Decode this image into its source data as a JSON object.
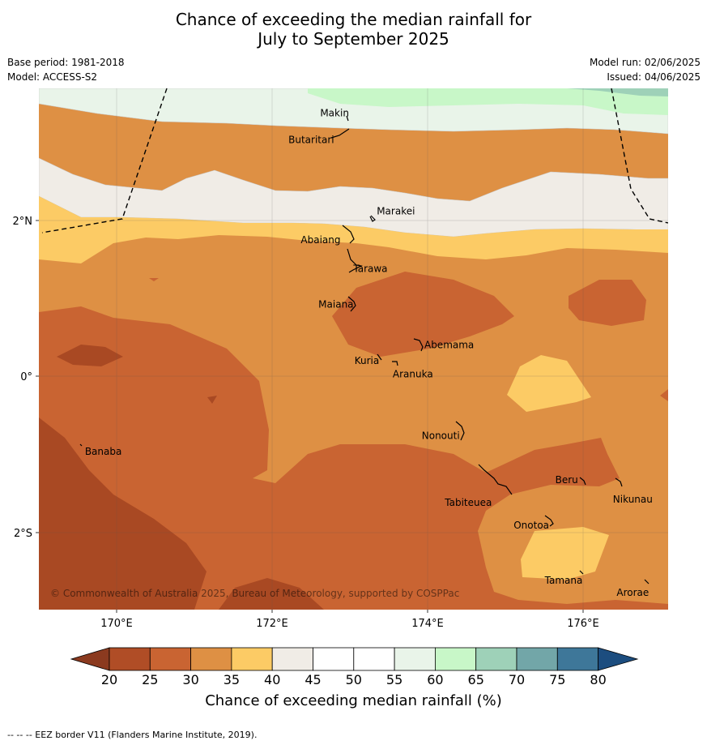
{
  "title_line1": "Chance of exceeding the median rainfall for",
  "title_line2": "July to September 2025",
  "meta_left": [
    "Base period: 1981-2018",
    "Model: ACCESS-S2"
  ],
  "meta_right": [
    "Model run: 02/06/2025",
    "Issued: 04/06/2025"
  ],
  "copyright": "© Commonwealth of Australia 2025, Bureau of Meteorology, supported by COSPPac",
  "footnote": "--  --  -- EEZ border V11 (Flanders Marine Institute, 2019).",
  "lon_ticks": [
    "170°E",
    "172°E",
    "174°E",
    "176°E"
  ],
  "lat_ticks": [
    "2°N",
    "0°",
    "2°S"
  ],
  "places": [
    {
      "name": "Makin",
      "lon": 172.99,
      "lat": 3.33
    },
    {
      "name": "Butaritari",
      "lon": 172.79,
      "lat": 3.07
    },
    {
      "name": "Marakei",
      "lon": 173.28,
      "lat": 2.01
    },
    {
      "name": "Abaiang",
      "lon": 172.97,
      "lat": 1.83
    },
    {
      "name": "Tarawa",
      "lon": 172.98,
      "lat": 1.42
    },
    {
      "name": "Maiana",
      "lon": 173.03,
      "lat": 0.92
    },
    {
      "name": "Abemama",
      "lon": 173.85,
      "lat": 0.4
    },
    {
      "name": "Kuria",
      "lon": 173.41,
      "lat": 0.22
    },
    {
      "name": "Aranuka",
      "lon": 173.61,
      "lat": 0.17
    },
    {
      "name": "Banaba",
      "lon": 169.53,
      "lat": -0.86
    },
    {
      "name": "Nonouti",
      "lon": 174.42,
      "lat": -0.68
    },
    {
      "name": "Tabiteuea",
      "lon": 174.8,
      "lat": -1.35
    },
    {
      "name": "Beru",
      "lon": 175.99,
      "lat": -1.33
    },
    {
      "name": "Nikunau",
      "lon": 176.46,
      "lat": -1.37
    },
    {
      "name": "Onotoa",
      "lon": 175.58,
      "lat": -1.83
    },
    {
      "name": "Tamana",
      "lon": 175.98,
      "lat": -2.5
    },
    {
      "name": "Arorae",
      "lon": 176.82,
      "lat": -2.64
    }
  ],
  "colorbar": {
    "label": "Chance of exceeding median rainfall (%)",
    "ticks": [
      "20",
      "25",
      "30",
      "35",
      "40",
      "45",
      "50",
      "55",
      "60",
      "65",
      "70",
      "75",
      "80"
    ],
    "colors": [
      "#b04d26",
      "#c96432",
      "#de9044",
      "#fccb65",
      "#f0ece6",
      "#ffffff",
      "#ffffff",
      "#e9f4e9",
      "#c8f7c8",
      "#9ed1b8",
      "#72a6a8",
      "#3e7799"
    ],
    "under_color": "#8b3a1f",
    "over_color": "#1c4d7f"
  },
  "map_colors": {
    "c20": "#a94923",
    "c25": "#c96432",
    "c30": "#de9044",
    "c35": "#fccb65",
    "c40": "#f0ece6",
    "c45": "#ffffff",
    "c55": "#e9f4e9",
    "c60": "#c8f7c8",
    "c65": "#9ed1b8"
  }
}
